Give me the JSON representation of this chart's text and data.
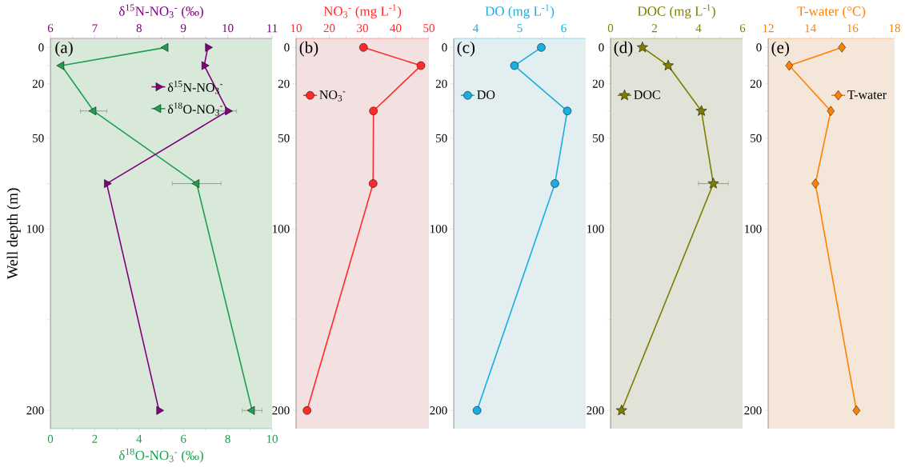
{
  "chart_data": [
    {
      "type": "line",
      "xlabel": "δ$^{18}$O-NO$_{3}$$^{-}$ (‰)",
      "x2label": "δ$^{15}$N-NO$_{3}$$^{-}$ (‰)",
      "ylabel": "Well depth (m)",
      "annotations": [
        "(a)"
      ],
      "marker": "triangle",
      "legend": "top",
      "xlim": [
        0,
        10
      ],
      "xticks": [
        0,
        2,
        4,
        6,
        8,
        10
      ],
      "x2lim": [
        6,
        11
      ],
      "x2ticks": [
        6,
        7,
        8,
        9,
        10,
        11
      ],
      "ylim": [
        210,
        -5
      ],
      "yticks": [
        0,
        {
          "value": 10,
          "label": null
        },
        20,
        {
          "value": 35,
          "label": null
        },
        50,
        {
          "value": 75,
          "label": null
        },
        100,
        {
          "value": 150,
          "label": null
        },
        200
      ],
      "series": [
        {
          "name": "δ$^{15}$N-NO$_{3}$$^{-}$",
          "color": "#800080",
          "axis": "x2",
          "x": [
            9.55,
            9.47,
            10.0,
            7.27,
            8.45
          ],
          "values": [
            0,
            10,
            35,
            75,
            200
          ],
          "xerrors": [
            null,
            null,
            0.2,
            null,
            null
          ]
        },
        {
          "name": "δ$^{18}$O-NO$_{3}$$^{-}$",
          "color": "#1f9e50",
          "x": [
            5.2,
            0.5,
            1.95,
            6.6,
            9.1
          ],
          "values": [
            0,
            10,
            35,
            75,
            200
          ],
          "xerrors": [
            null,
            null,
            0.6,
            1.1,
            0.45
          ]
        }
      ]
    },
    {
      "type": "line",
      "xlabel": "NO$_{3}$$^{-}$ (mg L$^{-1}$)",
      "annotations": [
        "(b)"
      ],
      "marker": "circle",
      "legend": "top left",
      "xlim": [
        10,
        50
      ],
      "xticks": [
        10,
        20,
        30,
        40,
        50
      ],
      "ylim": [
        210,
        -5
      ],
      "yticks": [
        0,
        {
          "value": 10,
          "label": null
        },
        20,
        {
          "value": 35,
          "label": null
        },
        50,
        {
          "value": 75,
          "label": null
        },
        100,
        {
          "value": 150,
          "label": null
        },
        200
      ],
      "series": [
        {
          "name": "NO$_{3}$$^{-}$",
          "color": "#ff2a2a",
          "x": [
            30.3,
            47.6,
            33.3,
            33.2,
            13.3
          ],
          "values": [
            0,
            10,
            35,
            75,
            200
          ]
        }
      ]
    },
    {
      "type": "line",
      "xlabel": "DO (mg L$^{-1}$)",
      "annotations": [
        "(c)"
      ],
      "marker": "circle",
      "legend": "top left",
      "xlim": [
        3.5,
        6.5
      ],
      "xticks": [
        4,
        5,
        6
      ],
      "ylim": [
        210,
        -5
      ],
      "yticks": [
        0,
        {
          "value": 10,
          "label": null
        },
        20,
        {
          "value": 35,
          "label": null
        },
        50,
        {
          "value": 75,
          "label": null
        },
        100,
        {
          "value": 150,
          "label": null
        },
        200
      ],
      "series": [
        {
          "name": "DO",
          "color": "#18aee0",
          "x": [
            5.49,
            4.88,
            6.08,
            5.8,
            4.03
          ],
          "values": [
            0,
            10,
            35,
            75,
            200
          ]
        }
      ]
    },
    {
      "type": "line",
      "xlabel": "DOC (mg L$^{-1}$)",
      "annotations": [
        "(d)"
      ],
      "marker": "star",
      "legend": "top left",
      "xlim": [
        0,
        6
      ],
      "xticks": [
        0,
        2,
        4,
        6
      ],
      "ylim": [
        210,
        -5
      ],
      "yticks": [
        0,
        {
          "value": 10,
          "label": null
        },
        20,
        {
          "value": 35,
          "label": null
        },
        50,
        {
          "value": 75,
          "label": null
        },
        100,
        {
          "value": 150,
          "label": null
        },
        200
      ],
      "series": [
        {
          "name": "DOC",
          "color": "#7d7d00",
          "x": [
            1.45,
            2.62,
            4.13,
            4.67,
            0.5
          ],
          "values": [
            0,
            10,
            35,
            75,
            200
          ],
          "xerrors": [
            null,
            null,
            null,
            0.68,
            null
          ]
        }
      ]
    },
    {
      "type": "line",
      "xlabel": "T-water (°C)",
      "annotations": [
        "(e)"
      ],
      "marker": "diamond",
      "legend": "top right",
      "xlim": [
        12,
        18
      ],
      "xticks": [
        12,
        14,
        16,
        18
      ],
      "ylim": [
        210,
        -5
      ],
      "yticks": [
        0,
        {
          "value": 10,
          "label": null
        },
        20,
        {
          "value": 35,
          "label": null
        },
        50,
        {
          "value": 75,
          "label": null
        },
        100,
        {
          "value": 150,
          "label": null
        },
        200
      ],
      "series": [
        {
          "name": "T-water",
          "color": "#ff8000",
          "x": [
            15.5,
            13.0,
            14.97,
            14.24,
            16.19
          ],
          "values": [
            0,
            10,
            35,
            75,
            200
          ]
        }
      ]
    }
  ]
}
